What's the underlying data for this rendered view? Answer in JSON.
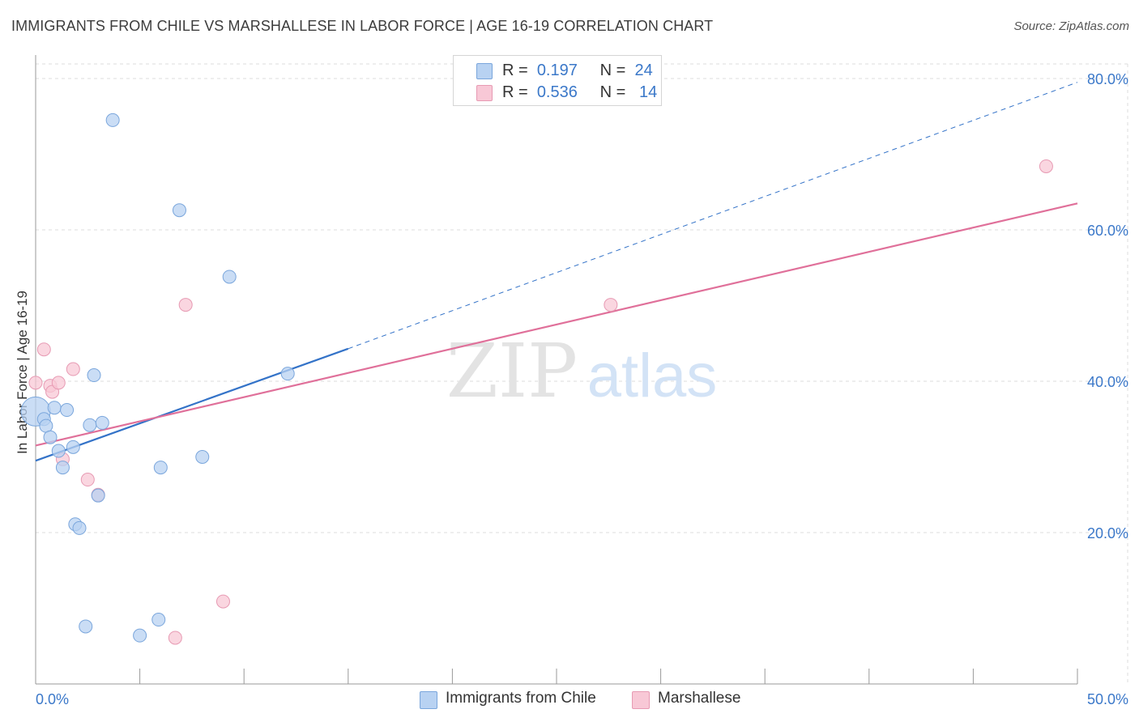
{
  "header": {
    "title": "IMMIGRANTS FROM CHILE VS MARSHALLESE IN LABOR FORCE | AGE 16-19 CORRELATION CHART",
    "source": "Source: ZipAtlas.com"
  },
  "watermark": {
    "zip": "ZIP",
    "atlas": "atlas"
  },
  "legend": {
    "rows": [
      {
        "r_label": "R =",
        "r_value": "0.197",
        "n_label": "N =",
        "n_value": "24"
      },
      {
        "r_label": "R =",
        "r_value": "0.536",
        "n_label": "N =",
        "n_value": "14"
      }
    ],
    "bottom": [
      "Immigrants from Chile",
      "Marshallese"
    ]
  },
  "colors": {
    "chile_fill": "#b8d2f2",
    "chile_stroke": "#7aa6dc",
    "chile_line": "#3473c8",
    "marsh_fill": "#f8c8d6",
    "marsh_stroke": "#e79ab3",
    "marsh_line": "#e0709a",
    "axis_text": "#3b78c9",
    "grid": "#dddddd"
  },
  "chart_data": {
    "type": "scatter",
    "title": "IMMIGRANTS FROM CHILE VS MARSHALLESE IN LABOR FORCE | AGE 16-19 CORRELATION CHART",
    "xlabel": "",
    "ylabel": "In Labor Force | Age 16-19",
    "xlim": [
      0,
      50
    ],
    "ylim": [
      0,
      85
    ],
    "x_tick_labels": [
      "0.0%",
      "50.0%"
    ],
    "y_ticks": [
      20,
      40,
      60,
      80
    ],
    "y_tick_labels": [
      "20.0%",
      "40.0%",
      "60.0%",
      "80.0%"
    ],
    "grid": true,
    "series": [
      {
        "name": "Immigrants from Chile",
        "r": 0.197,
        "n": 24,
        "points": [
          {
            "x": 0.0,
            "y": 36.0,
            "size": "large"
          },
          {
            "x": 0.4,
            "y": 35.0
          },
          {
            "x": 0.5,
            "y": 34.1
          },
          {
            "x": 0.7,
            "y": 32.6
          },
          {
            "x": 0.9,
            "y": 36.5
          },
          {
            "x": 1.1,
            "y": 30.8
          },
          {
            "x": 1.3,
            "y": 28.6
          },
          {
            "x": 1.5,
            "y": 36.2
          },
          {
            "x": 1.8,
            "y": 31.3
          },
          {
            "x": 1.9,
            "y": 21.1
          },
          {
            "x": 2.1,
            "y": 20.6
          },
          {
            "x": 2.4,
            "y": 7.6
          },
          {
            "x": 2.6,
            "y": 34.2
          },
          {
            "x": 2.8,
            "y": 40.8
          },
          {
            "x": 3.2,
            "y": 34.5
          },
          {
            "x": 3.0,
            "y": 24.9
          },
          {
            "x": 3.7,
            "y": 74.5
          },
          {
            "x": 5.0,
            "y": 6.4
          },
          {
            "x": 5.9,
            "y": 8.5
          },
          {
            "x": 6.0,
            "y": 28.6
          },
          {
            "x": 6.9,
            "y": 62.6
          },
          {
            "x": 8.0,
            "y": 30.0
          },
          {
            "x": 9.3,
            "y": 53.8
          },
          {
            "x": 12.1,
            "y": 41.0
          }
        ],
        "trend": {
          "x0": 0.0,
          "y0": 29.5,
          "x1": 15.0,
          "y1": 44.3,
          "dashed_to_x": 50.0,
          "dashed_to_y": 79.5
        }
      },
      {
        "name": "Marshallese",
        "r": 0.536,
        "n": 14,
        "points": [
          {
            "x": 0.0,
            "y": 39.8
          },
          {
            "x": 0.4,
            "y": 44.2
          },
          {
            "x": 0.7,
            "y": 39.4
          },
          {
            "x": 0.8,
            "y": 38.6
          },
          {
            "x": 1.1,
            "y": 39.8
          },
          {
            "x": 1.3,
            "y": 29.7
          },
          {
            "x": 1.8,
            "y": 41.6
          },
          {
            "x": 2.5,
            "y": 27.0
          },
          {
            "x": 3.0,
            "y": 25.0
          },
          {
            "x": 6.7,
            "y": 6.1
          },
          {
            "x": 7.2,
            "y": 50.1
          },
          {
            "x": 9.0,
            "y": 10.9
          },
          {
            "x": 27.6,
            "y": 50.1
          },
          {
            "x": 48.5,
            "y": 68.4
          }
        ],
        "trend": {
          "x0": 0.0,
          "y0": 31.5,
          "x1": 50.0,
          "y1": 63.5
        }
      }
    ]
  }
}
